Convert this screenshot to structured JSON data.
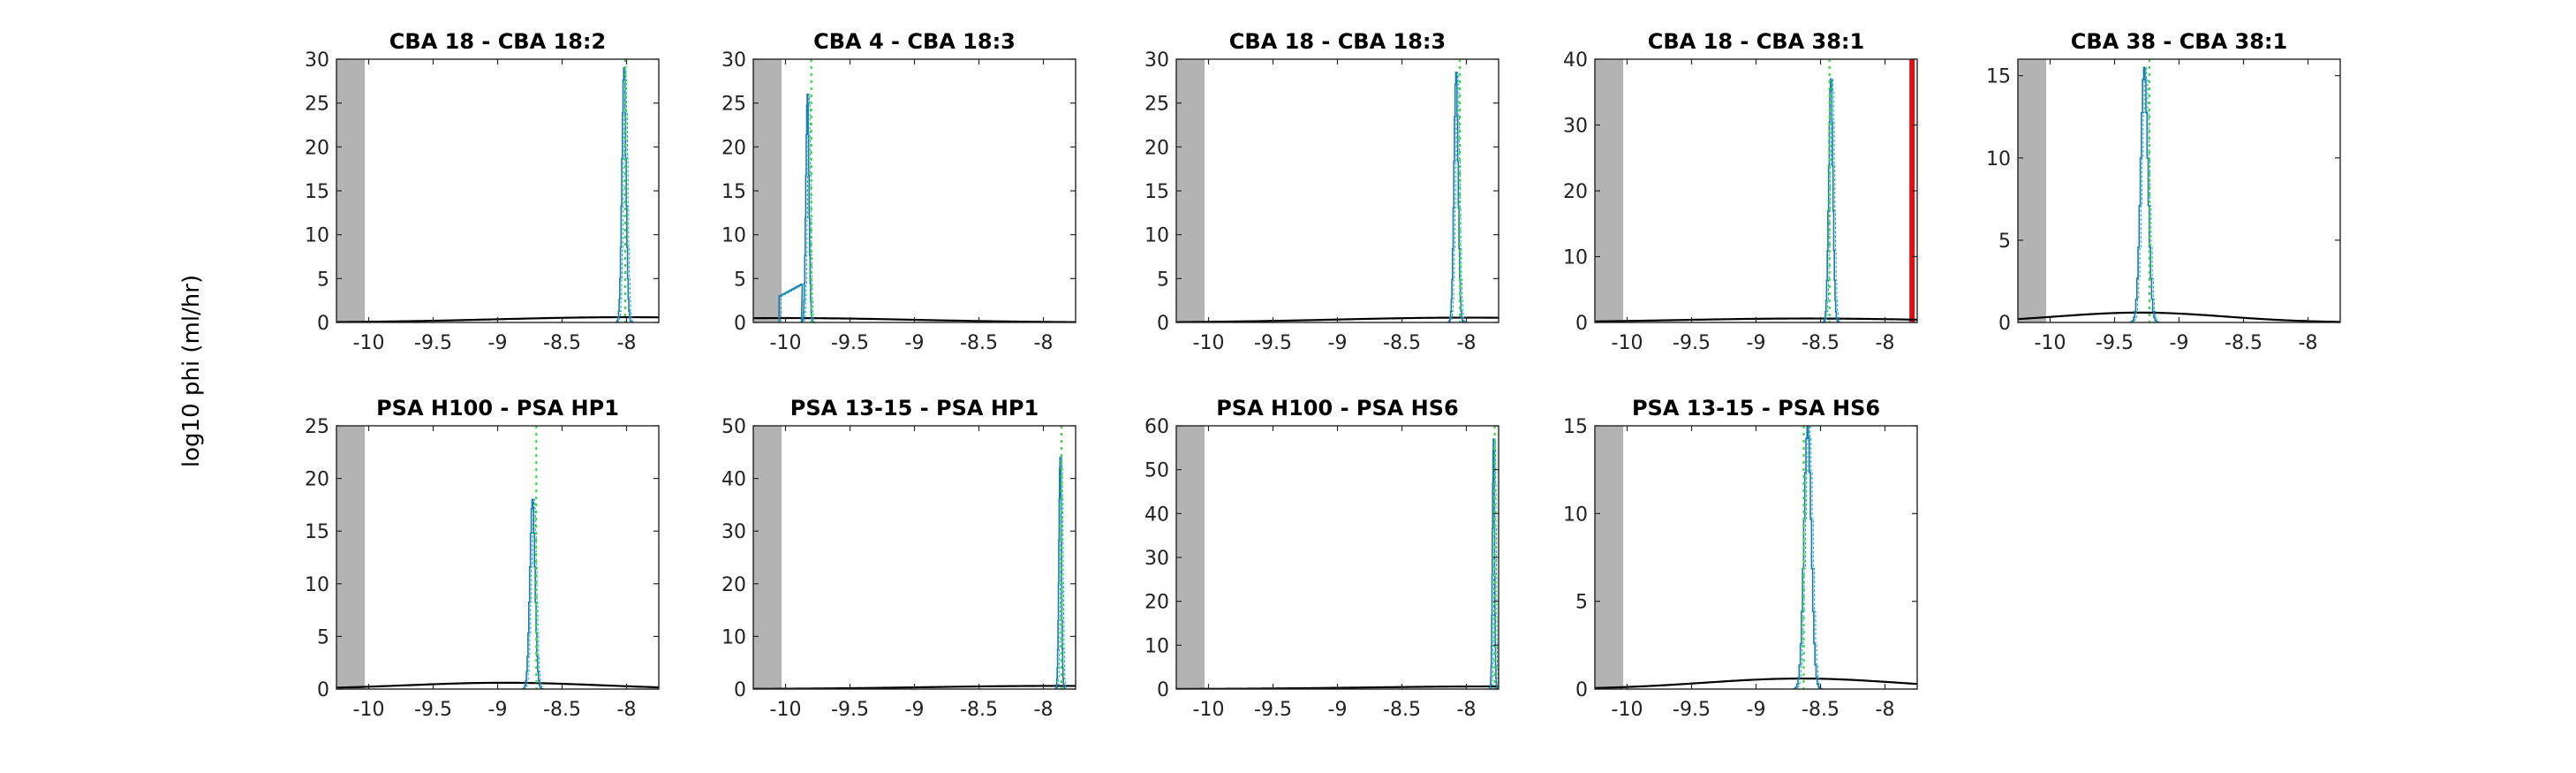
{
  "figure": {
    "ylabel": "log10 phi (ml/hr)"
  },
  "colors": {
    "shade": "#b3b3b3",
    "hist": "#1f77b4",
    "hist_alt": "#00aaaa",
    "prior": "#000000",
    "marker": "#33dd33",
    "bound": "#dd1111"
  },
  "chart_data": [
    {
      "type": "line",
      "title": "CBA 18 - CBA 18:2",
      "xlim": [
        -10.25,
        -7.75
      ],
      "ylim": [
        0,
        30
      ],
      "xticks": [
        -10,
        -9.5,
        -9,
        -8.5,
        -8
      ],
      "yticks": [
        0,
        5,
        10,
        15,
        20,
        25,
        30
      ],
      "shade": [
        -10.25,
        -10.03
      ],
      "prior": {
        "center": -8.0,
        "sd": 1.0,
        "peak": 0.6
      },
      "peak": {
        "center": -8.02,
        "width": 0.02,
        "height": 29
      },
      "marker": -8.01,
      "bound": null
    },
    {
      "type": "line",
      "title": "CBA 4 - CBA 18:3",
      "xlim": [
        -10.25,
        -7.75
      ],
      "ylim": [
        0,
        30
      ],
      "xticks": [
        -10,
        -9.5,
        -9,
        -8.5,
        -8
      ],
      "yticks": [
        0,
        5,
        10,
        15,
        20,
        25,
        30
      ],
      "shade": [
        -10.25,
        -10.03
      ],
      "prior": {
        "center": -10.0,
        "sd": 1.0,
        "peak": 0.5
      },
      "peak": {
        "center": -9.83,
        "width": 0.015,
        "height": 26
      },
      "tail": {
        "from": -10.05,
        "to": -9.88,
        "level": 3
      },
      "marker": -9.8,
      "bound": null
    },
    {
      "type": "line",
      "title": "CBA 18 - CBA 18:3",
      "xlim": [
        -10.25,
        -7.75
      ],
      "ylim": [
        0,
        30
      ],
      "xticks": [
        -10,
        -9.5,
        -9,
        -8.5,
        -8
      ],
      "yticks": [
        0,
        5,
        10,
        15,
        20,
        25,
        30
      ],
      "shade": [
        -10.25,
        -10.03
      ],
      "prior": {
        "center": -8.0,
        "sd": 1.0,
        "peak": 0.55
      },
      "peak": {
        "center": -8.08,
        "width": 0.02,
        "height": 28.5
      },
      "marker": -8.05,
      "bound": null
    },
    {
      "type": "line",
      "title": "CBA 18 - CBA 38:1",
      "xlim": [
        -10.25,
        -7.75
      ],
      "ylim": [
        0,
        40
      ],
      "xticks": [
        -10,
        -9.5,
        -9,
        -8.5,
        -8
      ],
      "yticks": [
        0,
        10,
        20,
        30,
        40
      ],
      "shade": [
        -10.25,
        -10.03
      ],
      "prior": {
        "center": -8.6,
        "sd": 1.0,
        "peak": 0.6
      },
      "peak": {
        "center": -8.42,
        "width": 0.02,
        "height": 37
      },
      "marker": -8.43,
      "bound": -7.79
    },
    {
      "type": "line",
      "title": "CBA 38 - CBA 38:1",
      "xlim": [
        -10.25,
        -7.75
      ],
      "ylim": [
        0,
        16
      ],
      "xticks": [
        -10,
        -9.5,
        -9,
        -8.5,
        -8
      ],
      "yticks": [
        0,
        5,
        10,
        15
      ],
      "shade": [
        -10.25,
        -10.03
      ],
      "prior": {
        "center": -9.3,
        "sd": 0.65,
        "peak": 0.6
      },
      "peak": {
        "center": -9.27,
        "width": 0.035,
        "height": 15.5
      },
      "marker": -9.23,
      "bound": null
    },
    {
      "type": "line",
      "title": "PSA H100 - PSA HP1",
      "xlim": [
        -10.25,
        -7.75
      ],
      "ylim": [
        0,
        25
      ],
      "xticks": [
        -10,
        -9.5,
        -9,
        -8.5,
        -8
      ],
      "yticks": [
        0,
        5,
        10,
        15,
        20,
        25
      ],
      "shade": [
        -10.25,
        -10.03
      ],
      "prior": {
        "center": -8.95,
        "sd": 0.75,
        "peak": 0.6
      },
      "peak": {
        "center": -8.73,
        "width": 0.025,
        "height": 18
      },
      "marker": -8.7,
      "bound": null
    },
    {
      "type": "line",
      "title": "PSA 13-15 - PSA HP1",
      "xlim": [
        -10.25,
        -7.75
      ],
      "ylim": [
        0,
        50
      ],
      "xticks": [
        -10,
        -9.5,
        -9,
        -8.5,
        -8
      ],
      "yticks": [
        0,
        10,
        20,
        30,
        40,
        50
      ],
      "shade": [
        -10.25,
        -10.03
      ],
      "prior": {
        "center": -7.9,
        "sd": 1.0,
        "peak": 0.6
      },
      "peak": {
        "center": -7.87,
        "width": 0.012,
        "height": 44
      },
      "marker": -7.86,
      "bound": null
    },
    {
      "type": "line",
      "title": "PSA H100 - PSA HS6",
      "xlim": [
        -10.25,
        -7.75
      ],
      "ylim": [
        0,
        60
      ],
      "xticks": [
        -10,
        -9.5,
        -9,
        -8.5,
        -8
      ],
      "yticks": [
        0,
        10,
        20,
        30,
        40,
        50,
        60
      ],
      "shade": [
        -10.25,
        -10.03
      ],
      "prior": {
        "center": -7.78,
        "sd": 1.0,
        "peak": 0.6
      },
      "peak": {
        "center": -7.79,
        "width": 0.01,
        "height": 57
      },
      "marker": -7.78,
      "bound": null
    },
    {
      "type": "line",
      "title": "PSA 13-15 - PSA HS6",
      "xlim": [
        -10.25,
        -7.75
      ],
      "ylim": [
        0,
        15
      ],
      "xticks": [
        -10,
        -9.5,
        -9,
        -8.5,
        -8
      ],
      "yticks": [
        0,
        5,
        10,
        15
      ],
      "shade": [
        -10.25,
        -10.03
      ],
      "prior": {
        "center": -8.65,
        "sd": 0.75,
        "peak": 0.6
      },
      "peak": {
        "center": -8.6,
        "width": 0.035,
        "height": 15
      },
      "marker": -8.63,
      "bound": null
    }
  ]
}
